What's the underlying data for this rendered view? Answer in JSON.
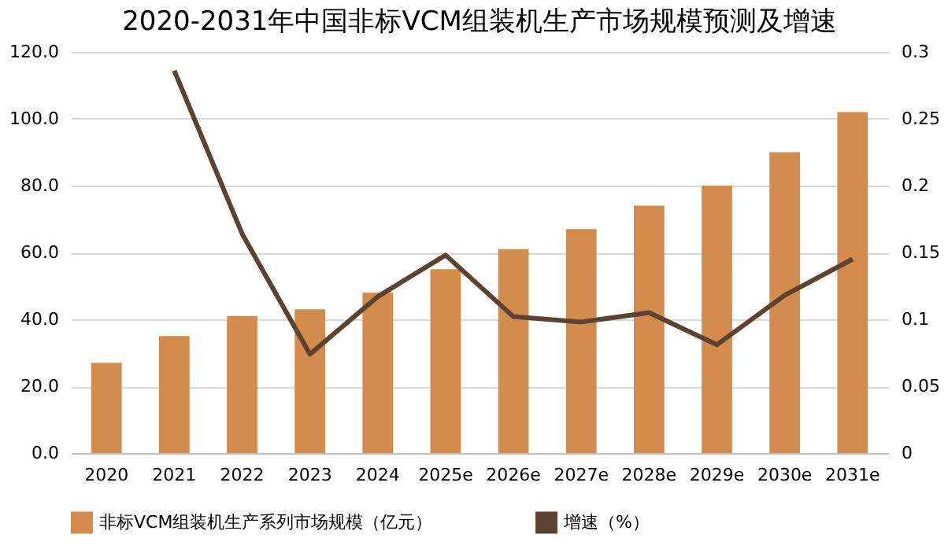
{
  "chart_data": {
    "type": "bar",
    "title": "2020-2031年中国非标VCM组装机生产市场规模预测及增速",
    "categories": [
      "2020",
      "2021",
      "2022",
      "2023",
      "2024",
      "2025e",
      "2026e",
      "2027e",
      "2028e",
      "2029e",
      "2030e",
      "2031e"
    ],
    "series": [
      {
        "name": "非标VCM组装机生产系列市场规模（亿元）",
        "color": "#d48c4e",
        "values": [
          27,
          35,
          41,
          43,
          48,
          55,
          61,
          67,
          74,
          80,
          90,
          102
        ]
      },
      {
        "name": "增速（%）",
        "type": "line",
        "axis": "y2",
        "color": "#5c4230",
        "values": [
          null,
          0.286,
          0.164,
          0.074,
          0.117,
          0.148,
          0.102,
          0.098,
          0.105,
          0.081,
          0.118,
          0.145
        ]
      }
    ],
    "ylim": [
      0,
      120
    ],
    "yticks": [
      {
        "value": 0,
        "label": "0.0"
      },
      {
        "value": 20,
        "label": "20.0"
      },
      {
        "value": 40,
        "label": "40.0"
      },
      {
        "value": 60,
        "label": "60.0"
      },
      {
        "value": 80,
        "label": "80.0"
      },
      {
        "value": 100,
        "label": "100.0"
      },
      {
        "value": 120,
        "label": "120.0"
      }
    ],
    "y2lim": [
      0,
      0.3
    ],
    "y2ticks": [
      0,
      0.05,
      0.1,
      0.15,
      0.2,
      0.25,
      0.3
    ],
    "grid": "y",
    "legend": "bottom",
    "marker": "none",
    "line_style": "solid"
  }
}
